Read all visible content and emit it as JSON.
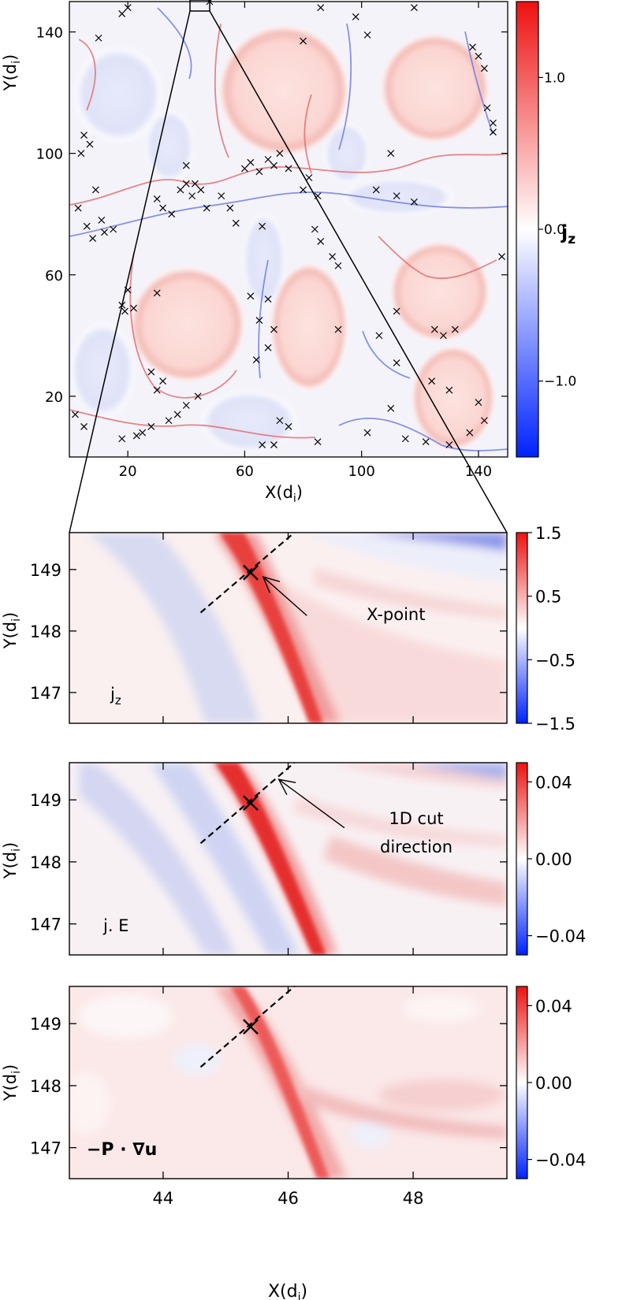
{
  "colorscale": {
    "low": "#0022ff",
    "mid": "#ffffff",
    "high": "#ee1111"
  },
  "chart_data": [
    {
      "type": "heatmap",
      "panel": "overview",
      "xlabel": "X(d_i)",
      "ylabel": "Y(d_i)",
      "xlim": [
        0,
        150
      ],
      "ylim": [
        0,
        150
      ],
      "xticks": [
        20,
        60,
        100,
        140
      ],
      "yticks": [
        20,
        60,
        100,
        140
      ],
      "colorbar": {
        "label": "j_z",
        "ticks": [
          "1.0",
          "0.0",
          "−1.0"
        ],
        "tick_values": [
          1.0,
          0.0,
          -1.0
        ],
        "range": [
          -1.5,
          1.5
        ]
      },
      "markers": "x",
      "x_points": [
        {
          "x": 10,
          "y": 138
        },
        {
          "x": 18,
          "y": 146
        },
        {
          "x": 20,
          "y": 148
        },
        {
          "x": 5,
          "y": 106
        },
        {
          "x": 4,
          "y": 100
        },
        {
          "x": 7,
          "y": 103
        },
        {
          "x": 9,
          "y": 88
        },
        {
          "x": 3,
          "y": 82
        },
        {
          "x": 6,
          "y": 76
        },
        {
          "x": 8,
          "y": 72
        },
        {
          "x": 11,
          "y": 78
        },
        {
          "x": 12,
          "y": 74
        },
        {
          "x": 15,
          "y": 75
        },
        {
          "x": 20,
          "y": 55
        },
        {
          "x": 18,
          "y": 50
        },
        {
          "x": 19,
          "y": 48
        },
        {
          "x": 22,
          "y": 49
        },
        {
          "x": 30,
          "y": 54
        },
        {
          "x": 30,
          "y": 85
        },
        {
          "x": 32,
          "y": 82
        },
        {
          "x": 35,
          "y": 80
        },
        {
          "x": 38,
          "y": 88
        },
        {
          "x": 40,
          "y": 90
        },
        {
          "x": 42,
          "y": 86
        },
        {
          "x": 43,
          "y": 90
        },
        {
          "x": 45,
          "y": 88
        },
        {
          "x": 47,
          "y": 82
        },
        {
          "x": 40,
          "y": 96
        },
        {
          "x": 52,
          "y": 86
        },
        {
          "x": 55,
          "y": 82
        },
        {
          "x": 60,
          "y": 95
        },
        {
          "x": 62,
          "y": 97
        },
        {
          "x": 65,
          "y": 94
        },
        {
          "x": 68,
          "y": 98
        },
        {
          "x": 70,
          "y": 96
        },
        {
          "x": 72,
          "y": 100
        },
        {
          "x": 75,
          "y": 95
        },
        {
          "x": 66,
          "y": 76
        },
        {
          "x": 62,
          "y": 53
        },
        {
          "x": 68,
          "y": 52
        },
        {
          "x": 65,
          "y": 45
        },
        {
          "x": 70,
          "y": 42
        },
        {
          "x": 68,
          "y": 36
        },
        {
          "x": 64,
          "y": 32
        },
        {
          "x": 80,
          "y": 88
        },
        {
          "x": 82,
          "y": 92
        },
        {
          "x": 85,
          "y": 86
        },
        {
          "x": 84,
          "y": 75
        },
        {
          "x": 86,
          "y": 71
        },
        {
          "x": 90,
          "y": 66
        },
        {
          "x": 92,
          "y": 63
        },
        {
          "x": 105,
          "y": 88
        },
        {
          "x": 112,
          "y": 86
        },
        {
          "x": 118,
          "y": 84
        },
        {
          "x": 110,
          "y": 100
        },
        {
          "x": 80,
          "y": 137
        },
        {
          "x": 86,
          "y": 148
        },
        {
          "x": 98,
          "y": 145
        },
        {
          "x": 102,
          "y": 139
        },
        {
          "x": 118,
          "y": 148
        },
        {
          "x": 138,
          "y": 135
        },
        {
          "x": 140,
          "y": 132
        },
        {
          "x": 142,
          "y": 128
        },
        {
          "x": 143,
          "y": 115
        },
        {
          "x": 145,
          "y": 110
        },
        {
          "x": 145,
          "y": 107
        },
        {
          "x": 148,
          "y": 66
        },
        {
          "x": 125,
          "y": 42
        },
        {
          "x": 128,
          "y": 40
        },
        {
          "x": 132,
          "y": 42
        },
        {
          "x": 112,
          "y": 48
        },
        {
          "x": 106,
          "y": 40
        },
        {
          "x": 124,
          "y": 25
        },
        {
          "x": 130,
          "y": 22
        },
        {
          "x": 140,
          "y": 18
        },
        {
          "x": 142,
          "y": 12
        },
        {
          "x": 137,
          "y": 8
        },
        {
          "x": 122,
          "y": 5
        },
        {
          "x": 130,
          "y": 4
        },
        {
          "x": 110,
          "y": 16
        },
        {
          "x": 102,
          "y": 8
        },
        {
          "x": 85,
          "y": 5
        },
        {
          "x": 72,
          "y": 12
        },
        {
          "x": 75,
          "y": 10
        },
        {
          "x": 66,
          "y": 4
        },
        {
          "x": 70,
          "y": 4
        },
        {
          "x": 40,
          "y": 17
        },
        {
          "x": 44,
          "y": 20
        },
        {
          "x": 37,
          "y": 14
        },
        {
          "x": 30,
          "y": 22
        },
        {
          "x": 32,
          "y": 25
        },
        {
          "x": 28,
          "y": 28
        },
        {
          "x": 23,
          "y": 7
        },
        {
          "x": 25,
          "y": 8
        },
        {
          "x": 28,
          "y": 10
        },
        {
          "x": 18,
          "y": 6
        },
        {
          "x": 2,
          "y": 14
        },
        {
          "x": 5,
          "y": 10
        },
        {
          "x": 34,
          "y": 12
        },
        {
          "x": 57,
          "y": 77
        },
        {
          "x": 92,
          "y": 42
        },
        {
          "x": 112,
          "y": 31
        },
        {
          "x": 115,
          "y": 6
        },
        {
          "x": 48,
          "y": 150
        }
      ]
    },
    {
      "type": "heatmap",
      "panel": "jz-zoom",
      "annotation": "j_z",
      "ylabel": "Y(d_i)",
      "xlim": [
        42.5,
        49.5
      ],
      "ylim": [
        146.5,
        149.6
      ],
      "yticks": [
        147,
        148,
        149
      ],
      "colorbar": {
        "ticks": [
          "1.5",
          "0.5",
          "−0.5",
          "−1.5"
        ],
        "tick_values": [
          1.5,
          0.5,
          -0.5,
          -1.5
        ],
        "range": [
          -1.5,
          1.5
        ]
      },
      "x_point": {
        "x": 45.4,
        "y": 148.95
      },
      "cut_line": [
        {
          "x": 44.6,
          "y": 148.3
        },
        {
          "x": 46.1,
          "y": 149.6
        }
      ],
      "callout": {
        "text": "X-point",
        "from": {
          "x": 46.3,
          "y": 148.25
        },
        "to": {
          "x": 45.6,
          "y": 148.88
        }
      }
    },
    {
      "type": "heatmap",
      "panel": "jE-zoom",
      "annotation": "j. E",
      "ylabel": "Y(d_i)",
      "xlim": [
        42.5,
        49.5
      ],
      "ylim": [
        146.5,
        149.6
      ],
      "yticks": [
        147,
        148,
        149
      ],
      "colorbar": {
        "ticks": [
          "0.04",
          "0.00",
          "−0.04"
        ],
        "tick_values": [
          0.04,
          0.0,
          -0.04
        ],
        "range": [
          -0.05,
          0.05
        ]
      },
      "x_point": {
        "x": 45.4,
        "y": 148.95
      },
      "cut_line": [
        {
          "x": 44.6,
          "y": 148.3
        },
        {
          "x": 46.1,
          "y": 149.6
        }
      ],
      "callout": {
        "text_lines": [
          "1D cut",
          "direction"
        ],
        "from": {
          "x": 46.9,
          "y": 148.55
        },
        "to": {
          "x": 45.85,
          "y": 149.33
        }
      }
    },
    {
      "type": "heatmap",
      "panel": "PiD-zoom",
      "annotation": "−P · ∇u",
      "xlabel": "X(d_i)",
      "ylabel": "Y(d_i)",
      "xlim": [
        42.5,
        49.5
      ],
      "ylim": [
        146.5,
        149.6
      ],
      "xticks": [
        44,
        46,
        48
      ],
      "yticks": [
        147,
        148,
        149
      ],
      "colorbar": {
        "ticks": [
          "0.04",
          "0.00",
          "−0.04"
        ],
        "tick_values": [
          0.04,
          0.0,
          -0.04
        ],
        "range": [
          -0.05,
          0.05
        ]
      },
      "x_point": {
        "x": 45.4,
        "y": 148.95
      },
      "cut_line": [
        {
          "x": 44.6,
          "y": 148.3
        },
        {
          "x": 46.1,
          "y": 149.6
        }
      ]
    }
  ]
}
